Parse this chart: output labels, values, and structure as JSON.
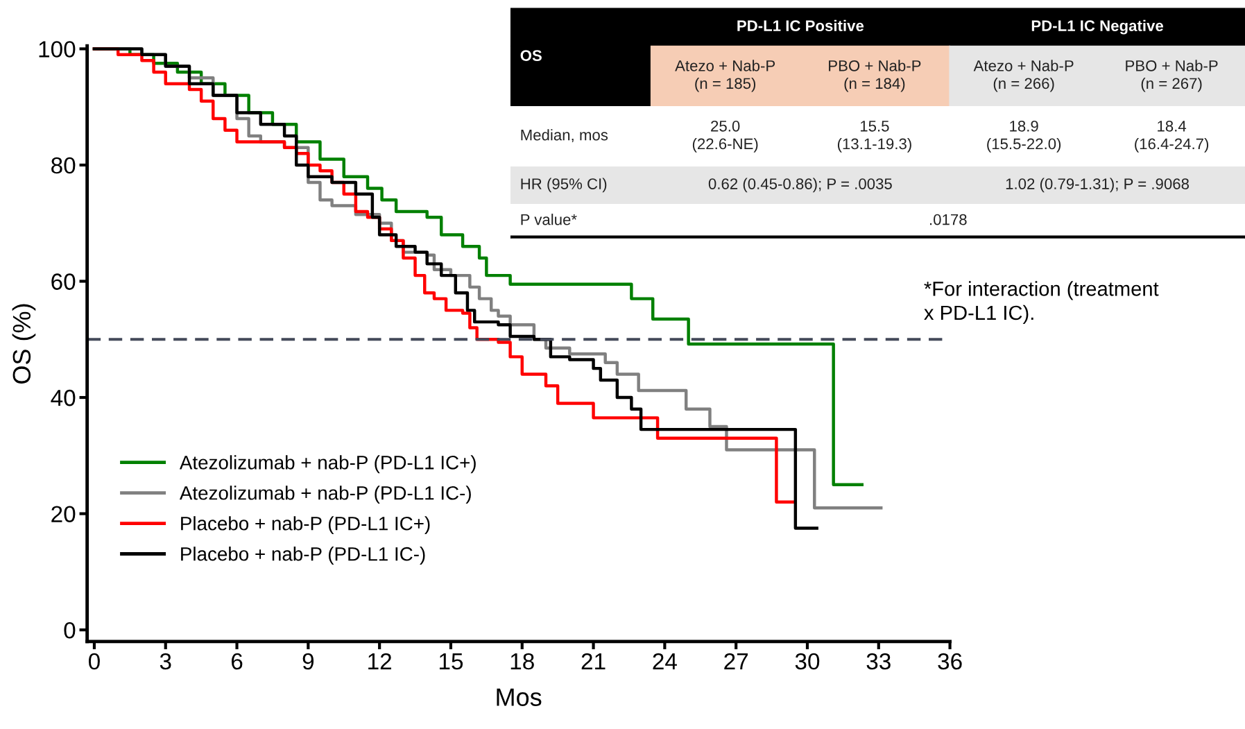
{
  "chart_data": {
    "type": "step",
    "xlabel": "Mos",
    "ylabel": "OS (%)",
    "xlim": [
      -0.3,
      36
    ],
    "ylim": [
      -2,
      100.5
    ],
    "xticks": [
      0,
      3,
      6,
      9,
      12,
      15,
      18,
      21,
      24,
      27,
      30,
      33,
      36
    ],
    "yticks": [
      0,
      20,
      40,
      60,
      80,
      100
    ],
    "grid": false,
    "legend": "bottom left",
    "marker": "none",
    "line_style": "solid",
    "ref_lines": [
      {
        "axis": "y",
        "value": 50,
        "color": "#444a5a",
        "line_style": "dashed"
      }
    ],
    "series": [
      {
        "name": "Atezolizumab + nab-P (PD-L1 IC+)",
        "color": "#008000",
        "x": [
          0,
          1.5,
          2.5,
          3.5,
          4.5,
          5.5,
          6.5,
          7.5,
          8.5,
          9.5,
          10.5,
          11.5,
          12.1,
          12.7,
          14,
          14.6,
          15.5,
          16.2,
          16.5,
          17.5,
          22.6,
          23.5,
          25,
          31.1,
          32.3
        ],
        "values": [
          100,
          99,
          97.5,
          96,
          94,
          92,
          89,
          87,
          84,
          81,
          78,
          76,
          74,
          72,
          71,
          68,
          66,
          64,
          61,
          59.5,
          57,
          53.5,
          49.2,
          25,
          25
        ]
      },
      {
        "name": "Atezolizumab + nab-P (PD-L1 IC-)",
        "color": "#808080",
        "x": [
          0,
          2,
          3,
          4,
          5,
          6,
          6.5,
          7,
          8,
          9,
          9.5,
          10,
          11,
          12,
          12.5,
          13,
          14,
          14.3,
          15,
          15.8,
          16.2,
          16.7,
          17,
          17.5,
          18.5,
          19,
          20,
          21.5,
          22,
          22.9,
          24.9,
          25.9,
          26.6,
          30.3,
          33.1
        ],
        "values": [
          100,
          99,
          97,
          95,
          92,
          88,
          85,
          84,
          83,
          77,
          74,
          73,
          71.5,
          70,
          67,
          65,
          64.5,
          62,
          61,
          59,
          57,
          55,
          54,
          52.5,
          50,
          48.5,
          47.5,
          46,
          44,
          41.2,
          38,
          35,
          31,
          21,
          21
        ]
      },
      {
        "name": "Placebo + nab-P (PD-L1 IC+)",
        "color": "#ff0000",
        "x": [
          0,
          1,
          2,
          2.5,
          3,
          4,
          4.5,
          5,
          5.5,
          6,
          7,
          8,
          8.5,
          9,
          9.5,
          10,
          10.5,
          11,
          11.5,
          12,
          12.5,
          13,
          13.5,
          13.9,
          14.3,
          14.8,
          15.5,
          15.8,
          16.1,
          17,
          17.5,
          18,
          19,
          19.5,
          20.5,
          21,
          23.7,
          28.7,
          29.4
        ],
        "values": [
          100,
          99,
          98,
          96,
          94,
          93,
          91,
          88,
          86,
          84,
          84,
          83,
          82,
          80,
          79,
          77,
          75,
          72,
          71,
          69,
          67,
          64,
          61,
          58,
          57,
          55,
          54.5,
          52,
          50,
          49.5,
          47,
          44,
          42,
          39,
          39,
          36.5,
          33,
          22,
          22
        ]
      },
      {
        "name": "Placebo + nab-P (PD-L1 IC-)",
        "color": "#000000",
        "x": [
          0,
          2,
          3,
          4,
          5,
          6,
          7,
          8,
          8.5,
          9,
          10,
          11,
          11.7,
          12,
          12.7,
          13.5,
          14,
          14.6,
          15.2,
          15.7,
          16,
          17,
          17.5,
          18.5,
          19.2,
          20,
          21,
          21.3,
          22,
          22.6,
          23,
          29.5,
          30.4
        ],
        "values": [
          100,
          99,
          97,
          94,
          92,
          89,
          87,
          85,
          80,
          78,
          77,
          75,
          71,
          68,
          66,
          65,
          63,
          61,
          58,
          55,
          53,
          52.5,
          50.5,
          50,
          47,
          46.5,
          45,
          43,
          40,
          38,
          34.5,
          17.5,
          17.5
        ]
      }
    ],
    "annotations": [
      "OS",
      "PD-L1 IC Positive",
      "PD-L1 IC Negative",
      "Atezo + Nab-P\n(n = 185)",
      "PBO + Nab-P\n(n = 184)",
      "Atezo + Nab-P\n(n = 266)",
      "PBO + Nab-P\n(n = 267)",
      "Median, mos",
      "25.0\n(22.6-NE)",
      "15.5\n(13.1-19.3)",
      "18.9\n(15.5-22.0)",
      "18.4\n(16.4-24.7)",
      "HR (95% CI)",
      "0.62 (0.45-0.86); P = .0035",
      "1.02 (0.79-1.31); P = .9068",
      "P value*",
      ".0178",
      "*For interaction (treatment\nx PD-L1 IC)."
    ]
  }
}
